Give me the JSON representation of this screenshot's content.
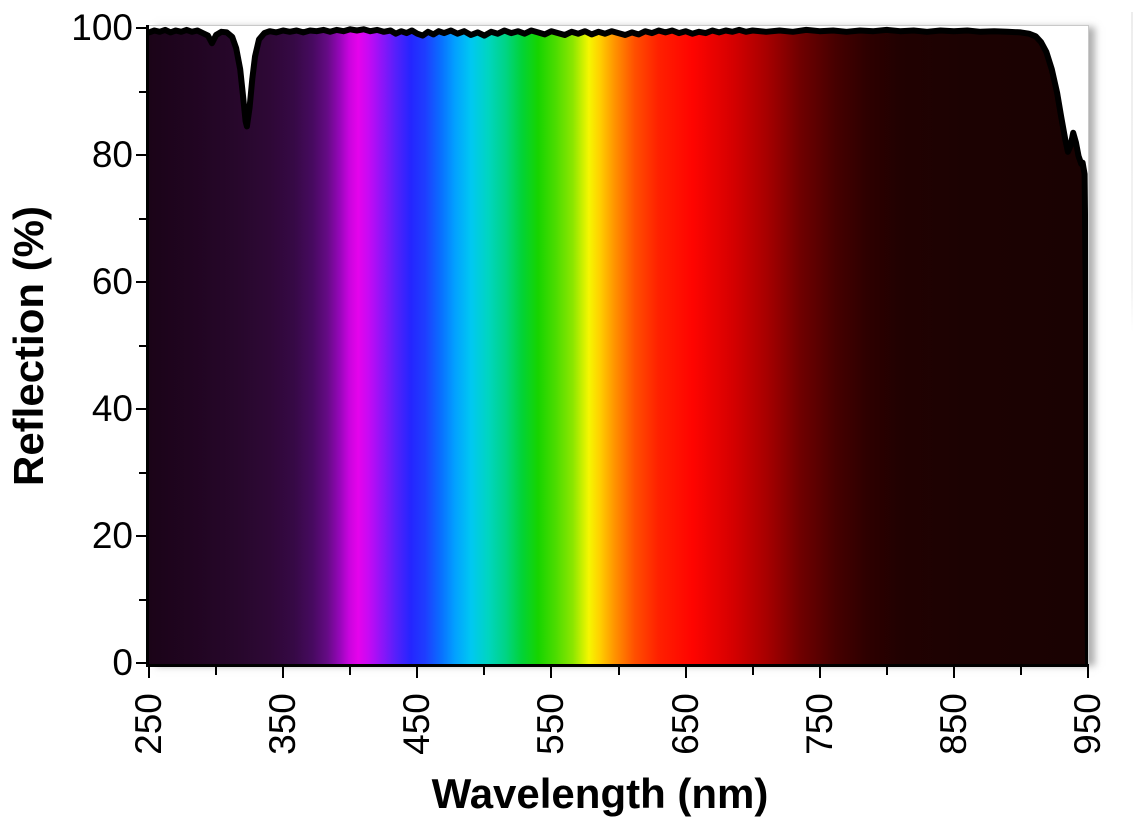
{
  "figure": {
    "background": "#ffffff",
    "plot_border_color": "#c9c9c9",
    "axis_color": "#000000",
    "curve_color": "#000000",
    "text_color": "#000000"
  },
  "chart_data": {
    "type": "area",
    "title": "",
    "xlabel": "Wavelength (nm)",
    "ylabel": "Reflection (%)",
    "xlim": [
      250,
      950
    ],
    "ylim": [
      0,
      100
    ],
    "grid": false,
    "legend": null,
    "x_ticks_major": [
      250,
      350,
      450,
      550,
      650,
      750,
      850,
      950
    ],
    "x_ticks_minor": [
      300,
      400,
      500,
      600,
      700,
      800,
      900
    ],
    "y_ticks_major": [
      0,
      20,
      40,
      60,
      80,
      100
    ],
    "y_ticks_minor": [
      10,
      30,
      50,
      70,
      90
    ],
    "x_tick_label_rotation": -90,
    "description": "Reflectance spectrum near 99-100% from 250 to ~915 nm, with a narrow absorption dip to ~84.5% at ~322 nm, a small notch to ~97.6% near 297 nm, and a roll-off to ~77-84% between ~925 and 947 nm before the data ends at 950 nm. The area under the curve is filled with visible-spectrum colors mapped to wavelength.",
    "series": [
      {
        "name": "Reflection",
        "points": [
          [
            250,
            99.3
          ],
          [
            254,
            99.6
          ],
          [
            258,
            99.4
          ],
          [
            262,
            99.7
          ],
          [
            266,
            99.3
          ],
          [
            270,
            99.6
          ],
          [
            274,
            99.4
          ],
          [
            278,
            99.7
          ],
          [
            282,
            99.4
          ],
          [
            286,
            99.6
          ],
          [
            290,
            99.2
          ],
          [
            294,
            98.8
          ],
          [
            297,
            97.6
          ],
          [
            300,
            98.9
          ],
          [
            304,
            99.4
          ],
          [
            308,
            99.3
          ],
          [
            312,
            98.6
          ],
          [
            315,
            96.8
          ],
          [
            318,
            93.5
          ],
          [
            320,
            89.5
          ],
          [
            322,
            85.3
          ],
          [
            323,
            84.5
          ],
          [
            325,
            87.5
          ],
          [
            327,
            92
          ],
          [
            329,
            95.5
          ],
          [
            332,
            98.2
          ],
          [
            336,
            99.2
          ],
          [
            340,
            99.5
          ],
          [
            345,
            99.3
          ],
          [
            350,
            99.6
          ],
          [
            355,
            99.4
          ],
          [
            360,
            99.6
          ],
          [
            365,
            99.3
          ],
          [
            370,
            99.6
          ],
          [
            375,
            99.5
          ],
          [
            380,
            99.7
          ],
          [
            385,
            99.4
          ],
          [
            390,
            99.7
          ],
          [
            395,
            99.5
          ],
          [
            400,
            99.8
          ],
          [
            405,
            99.6
          ],
          [
            410,
            99.8
          ],
          [
            415,
            99.5
          ],
          [
            420,
            99.7
          ],
          [
            425,
            99.4
          ],
          [
            430,
            99.6
          ],
          [
            434,
            99.1
          ],
          [
            438,
            99.5
          ],
          [
            442,
            99.2
          ],
          [
            446,
            99.6
          ],
          [
            450,
            99.1
          ],
          [
            454,
            98.8
          ],
          [
            458,
            99.4
          ],
          [
            462,
            99
          ],
          [
            466,
            99.5
          ],
          [
            470,
            99.2
          ],
          [
            475,
            99.6
          ],
          [
            480,
            99.1
          ],
          [
            485,
            99.5
          ],
          [
            490,
            98.9
          ],
          [
            495,
            99.3
          ],
          [
            500,
            98.8
          ],
          [
            505,
            99.4
          ],
          [
            510,
            99.1
          ],
          [
            515,
            99.6
          ],
          [
            520,
            99.2
          ],
          [
            525,
            99.5
          ],
          [
            530,
            99.1
          ],
          [
            535,
            99.6
          ],
          [
            540,
            99.3
          ],
          [
            545,
            99
          ],
          [
            550,
            99.5
          ],
          [
            555,
            99.2
          ],
          [
            560,
            98.9
          ],
          [
            565,
            99.4
          ],
          [
            570,
            99.1
          ],
          [
            575,
            99.5
          ],
          [
            580,
            99
          ],
          [
            585,
            99.4
          ],
          [
            590,
            99.1
          ],
          [
            595,
            99.5
          ],
          [
            600,
            99.2
          ],
          [
            605,
            98.9
          ],
          [
            610,
            99.3
          ],
          [
            615,
            99
          ],
          [
            620,
            99.5
          ],
          [
            625,
            99.2
          ],
          [
            630,
            99.6
          ],
          [
            635,
            99.3
          ],
          [
            640,
            99.6
          ],
          [
            645,
            99.2
          ],
          [
            650,
            99.5
          ],
          [
            655,
            99.1
          ],
          [
            660,
            99.4
          ],
          [
            665,
            99.2
          ],
          [
            670,
            99.6
          ],
          [
            675,
            99.3
          ],
          [
            680,
            99.6
          ],
          [
            685,
            99.4
          ],
          [
            690,
            99.7
          ],
          [
            695,
            99.4
          ],
          [
            700,
            99.6
          ],
          [
            710,
            99.4
          ],
          [
            720,
            99.6
          ],
          [
            730,
            99.4
          ],
          [
            740,
            99.7
          ],
          [
            750,
            99.5
          ],
          [
            760,
            99.6
          ],
          [
            770,
            99.4
          ],
          [
            780,
            99.6
          ],
          [
            790,
            99.5
          ],
          [
            800,
            99.7
          ],
          [
            810,
            99.5
          ],
          [
            820,
            99.6
          ],
          [
            830,
            99.4
          ],
          [
            840,
            99.6
          ],
          [
            850,
            99.5
          ],
          [
            860,
            99.6
          ],
          [
            870,
            99.4
          ],
          [
            880,
            99.5
          ],
          [
            890,
            99.4
          ],
          [
            900,
            99.3
          ],
          [
            906,
            99.1
          ],
          [
            911,
            98.7
          ],
          [
            915,
            97.8
          ],
          [
            919,
            96.2
          ],
          [
            923,
            93.5
          ],
          [
            927,
            89.8
          ],
          [
            930,
            86
          ],
          [
            933,
            82.5
          ],
          [
            935,
            80.5
          ],
          [
            937,
            81.5
          ],
          [
            939,
            83.5
          ],
          [
            941,
            82
          ],
          [
            943,
            79.8
          ],
          [
            945,
            78.6
          ],
          [
            946,
            78.8
          ],
          [
            947.5,
            77
          ],
          [
            948.5,
            55
          ],
          [
            949.2,
            25
          ],
          [
            949.6,
            8
          ],
          [
            950,
            0
          ]
        ]
      }
    ],
    "spectrum_stops": [
      [
        250,
        "#1b0418"
      ],
      [
        285,
        "#210522"
      ],
      [
        315,
        "#27072b"
      ],
      [
        340,
        "#2e0836"
      ],
      [
        358,
        "#360945"
      ],
      [
        372,
        "#470a60"
      ],
      [
        383,
        "#650b85"
      ],
      [
        392,
        "#9507b8"
      ],
      [
        399,
        "#c804dd"
      ],
      [
        406,
        "#e603ec"
      ],
      [
        414,
        "#c50af4"
      ],
      [
        424,
        "#8c15f8"
      ],
      [
        434,
        "#5520fb"
      ],
      [
        445,
        "#2525ff"
      ],
      [
        456,
        "#1e3eff"
      ],
      [
        467,
        "#0a6cff"
      ],
      [
        478,
        "#02a0ff"
      ],
      [
        490,
        "#00c8f2"
      ],
      [
        503,
        "#00d5c0"
      ],
      [
        516,
        "#00d484"
      ],
      [
        528,
        "#02d338"
      ],
      [
        540,
        "#16d400"
      ],
      [
        553,
        "#4bdc00"
      ],
      [
        566,
        "#8ce600"
      ],
      [
        578,
        "#f6f600"
      ],
      [
        586,
        "#ffd000"
      ],
      [
        597,
        "#ff9400"
      ],
      [
        612,
        "#ff5000"
      ],
      [
        630,
        "#ff2000"
      ],
      [
        655,
        "#ff0400"
      ],
      [
        686,
        "#d40000"
      ],
      [
        710,
        "#a80000"
      ],
      [
        735,
        "#700000"
      ],
      [
        762,
        "#460000"
      ],
      [
        785,
        "#2e0000"
      ],
      [
        810,
        "#210101"
      ],
      [
        860,
        "#1c0202"
      ],
      [
        950,
        "#1a0202"
      ]
    ]
  }
}
